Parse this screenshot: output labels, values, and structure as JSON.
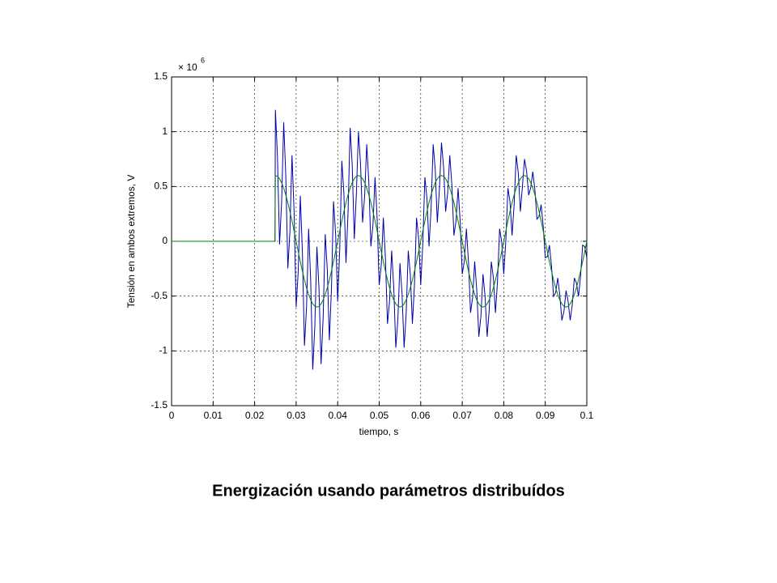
{
  "chart_data": {
    "type": "line",
    "caption": "Energización usando parámetros distribuídos",
    "x_label": "tiempo, s",
    "y_label": "Tensión en ambos extremos, V",
    "y_scale_label": "× 10",
    "y_scale_exponent": "6",
    "xlim": [
      0,
      0.1
    ],
    "ylim": [
      -1.5,
      1.5
    ],
    "xticks": [
      0,
      0.01,
      0.02,
      0.03,
      0.04,
      0.05,
      0.06,
      0.07,
      0.08,
      0.09,
      0.1
    ],
    "yticks": [
      -1.5,
      -1,
      -0.5,
      0,
      0.5,
      1,
      1.5
    ],
    "grid": true,
    "x": [
      0,
      0.005,
      0.01,
      0.015,
      0.02,
      0.0249,
      0.025,
      0.0255,
      0.026,
      0.0265,
      0.027,
      0.0275,
      0.028,
      0.0285,
      0.029,
      0.0295,
      0.03,
      0.0305,
      0.031,
      0.0315,
      0.032,
      0.0325,
      0.033,
      0.0335,
      0.034,
      0.0345,
      0.035,
      0.0355,
      0.036,
      0.0365,
      0.037,
      0.0375,
      0.038,
      0.0385,
      0.039,
      0.0395,
      0.04,
      0.0405,
      0.041,
      0.0415,
      0.042,
      0.0425,
      0.043,
      0.0435,
      0.044,
      0.0445,
      0.045,
      0.0455,
      0.046,
      0.0465,
      0.047,
      0.0475,
      0.048,
      0.0485,
      0.049,
      0.0495,
      0.05,
      0.0505,
      0.051,
      0.0515,
      0.052,
      0.0525,
      0.053,
      0.0535,
      0.054,
      0.0545,
      0.055,
      0.0555,
      0.056,
      0.0565,
      0.057,
      0.0575,
      0.058,
      0.0585,
      0.059,
      0.0595,
      0.06,
      0.0605,
      0.061,
      0.0615,
      0.062,
      0.0625,
      0.063,
      0.0635,
      0.064,
      0.0645,
      0.065,
      0.0655,
      0.066,
      0.0665,
      0.067,
      0.0675,
      0.068,
      0.0685,
      0.069,
      0.0695,
      0.07,
      0.0705,
      0.071,
      0.0715,
      0.072,
      0.0725,
      0.073,
      0.0735,
      0.074,
      0.0745,
      0.075,
      0.0755,
      0.076,
      0.0765,
      0.077,
      0.0775,
      0.078,
      0.0785,
      0.079,
      0.0795,
      0.08,
      0.0805,
      0.081,
      0.0815,
      0.082,
      0.0825,
      0.083,
      0.0835,
      0.084,
      0.0845,
      0.085,
      0.0855,
      0.086,
      0.0865,
      0.087,
      0.0875,
      0.088,
      0.0885,
      0.089,
      0.0895,
      0.09,
      0.0905,
      0.091,
      0.0915,
      0.092,
      0.0925,
      0.093,
      0.0935,
      0.094,
      0.0945,
      0.095,
      0.0955,
      0.096,
      0.0965,
      0.097,
      0.0975,
      0.098,
      0.0985,
      0.099,
      0.0995,
      0.1
    ],
    "series": [
      {
        "color": "#0000a8",
        "values": [
          0,
          0,
          0,
          0,
          0,
          0,
          1.2,
          0.773,
          -0.029,
          0.355,
          1.085,
          0.604,
          -0.247,
          0.092,
          0.785,
          0.274,
          -0.6,
          -0.274,
          0.415,
          -0.092,
          -0.953,
          -0.604,
          0.115,
          -0.355,
          -1.171,
          -0.773,
          -0.05,
          -0.428,
          -1.121,
          -0.7,
          0.065,
          -0.259,
          -0.903,
          -0.437,
          0.365,
          0.071,
          -0.55,
          -0.071,
          0.735,
          0.437,
          -0.197,
          0.259,
          1.035,
          0.7,
          0.021,
          0.428,
          1.0,
          0.713,
          0.171,
          0.415,
          0.885,
          0.544,
          -0.047,
          0.152,
          0.585,
          0.214,
          -0.4,
          -0.214,
          0.215,
          -0.152,
          -0.753,
          -0.544,
          -0.085,
          -0.415,
          -0.971,
          -0.713,
          -0.2,
          -0.473,
          -0.971,
          -0.655,
          -0.085,
          -0.304,
          -0.753,
          -0.392,
          0.215,
          0.026,
          -0.4,
          -0.026,
          0.585,
          0.392,
          -0.047,
          0.304,
          0.885,
          0.655,
          0.171,
          0.473,
          0.9,
          0.683,
          0.271,
          0.445,
          0.785,
          0.514,
          0.053,
          0.182,
          0.485,
          0.184,
          -0.3,
          -0.184,
          0.115,
          -0.182,
          -0.653,
          -0.514,
          -0.185,
          -0.445,
          -0.871,
          -0.683,
          -0.3,
          -0.503,
          -0.871,
          -0.625,
          -0.185,
          -0.334,
          -0.653,
          -0.362,
          0.115,
          -0.004,
          -0.3,
          0.004,
          0.485,
          0.362,
          0.053,
          0.334,
          0.785,
          0.625,
          0.271,
          0.503,
          0.75,
          0.638,
          0.421,
          0.49,
          0.635,
          0.469,
          0.203,
          0.227,
          0.335,
          0.139,
          -0.15,
          -0.139,
          -0.035,
          -0.227,
          -0.503,
          -0.469,
          -0.335,
          -0.49,
          -0.721,
          -0.638,
          -0.45,
          -0.548,
          -0.721,
          -0.58,
          -0.335,
          -0.379,
          -0.503,
          -0.317,
          -0.035,
          -0.049,
          -0.15
        ]
      },
      {
        "color": "#008000",
        "values": [
          0,
          0,
          0,
          0,
          0,
          0,
          0.6,
          0.593,
          0.571,
          0.535,
          0.485,
          0.424,
          0.353,
          0.272,
          0.185,
          0.094,
          0,
          -0.094,
          -0.185,
          -0.272,
          -0.353,
          -0.424,
          -0.485,
          -0.535,
          -0.571,
          -0.593,
          -0.6,
          -0.593,
          -0.571,
          -0.535,
          -0.485,
          -0.424,
          -0.353,
          -0.272,
          -0.185,
          -0.094,
          0,
          0.094,
          0.185,
          0.272,
          0.353,
          0.424,
          0.485,
          0.535,
          0.571,
          0.593,
          0.6,
          0.593,
          0.571,
          0.535,
          0.485,
          0.424,
          0.353,
          0.272,
          0.185,
          0.094,
          0,
          -0.094,
          -0.185,
          -0.272,
          -0.353,
          -0.424,
          -0.485,
          -0.535,
          -0.571,
          -0.593,
          -0.6,
          -0.593,
          -0.571,
          -0.535,
          -0.485,
          -0.424,
          -0.353,
          -0.272,
          -0.185,
          -0.094,
          0,
          0.094,
          0.185,
          0.272,
          0.353,
          0.424,
          0.485,
          0.535,
          0.571,
          0.593,
          0.6,
          0.593,
          0.571,
          0.535,
          0.485,
          0.424,
          0.353,
          0.272,
          0.185,
          0.094,
          0,
          -0.094,
          -0.185,
          -0.272,
          -0.353,
          -0.424,
          -0.485,
          -0.535,
          -0.571,
          -0.593,
          -0.6,
          -0.593,
          -0.571,
          -0.535,
          -0.485,
          -0.424,
          -0.353,
          -0.272,
          -0.185,
          -0.094,
          0,
          0.094,
          0.185,
          0.272,
          0.353,
          0.424,
          0.485,
          0.535,
          0.571,
          0.593,
          0.6,
          0.593,
          0.571,
          0.535,
          0.485,
          0.424,
          0.353,
          0.272,
          0.185,
          0.094,
          0,
          -0.094,
          -0.185,
          -0.272,
          -0.353,
          -0.424,
          -0.485,
          -0.535,
          -0.571,
          -0.593,
          -0.6,
          -0.593,
          -0.571,
          -0.535,
          -0.485,
          -0.424,
          -0.353,
          -0.272,
          -0.185,
          -0.094,
          0
        ]
      }
    ]
  }
}
